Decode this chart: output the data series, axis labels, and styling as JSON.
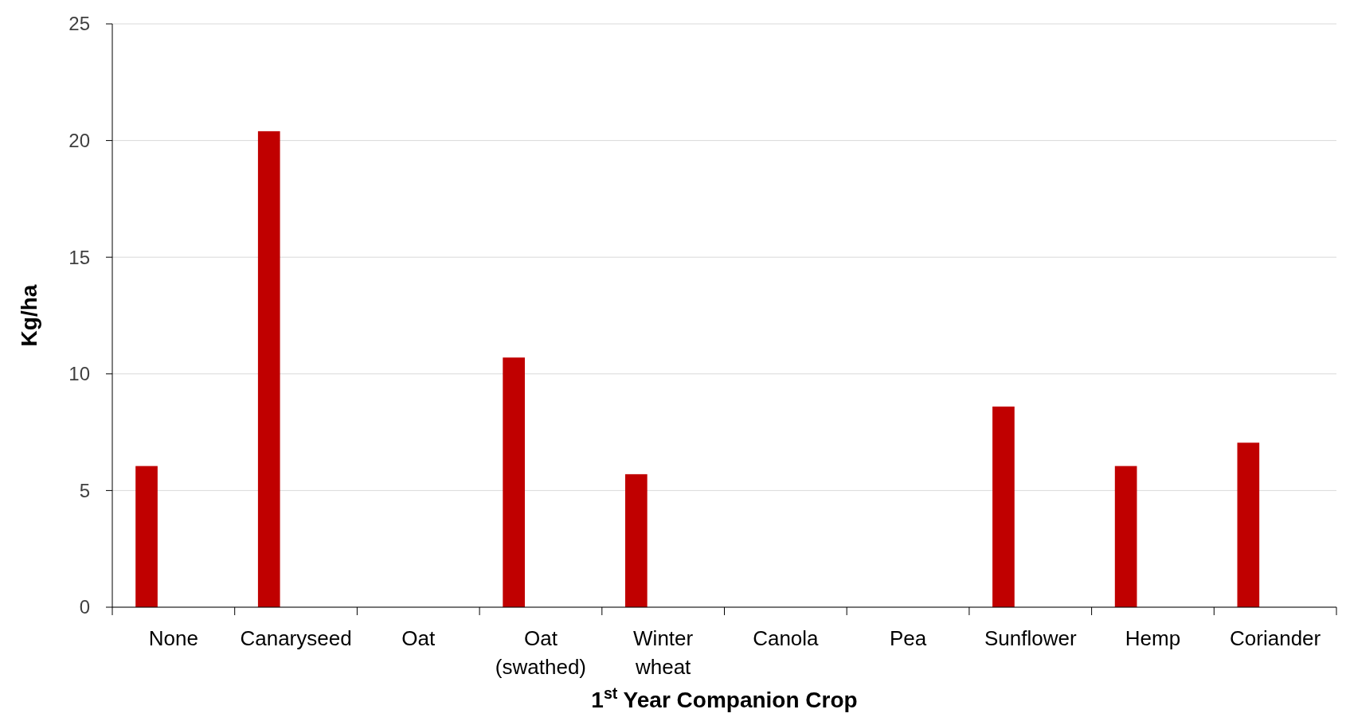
{
  "chart_data": {
    "type": "bar",
    "xlabel": "1$^{st}$ Year Companion Crop",
    "ylabel": "Kg/ha",
    "categories": [
      "None",
      "Canaryseed",
      "Oat",
      "Oat (swathed)",
      "Winter wheat",
      "Canola",
      "Pea",
      "Sunflower",
      "Hemp",
      "Coriander"
    ],
    "values": [
      6.05,
      20.4,
      0,
      10.7,
      5.7,
      0,
      0,
      8.6,
      6.05,
      7.05
    ],
    "color": "#c00000",
    "ylim": [
      0,
      25
    ],
    "yticks": [
      0,
      5,
      10,
      15,
      20,
      25
    ],
    "grid": "y"
  }
}
